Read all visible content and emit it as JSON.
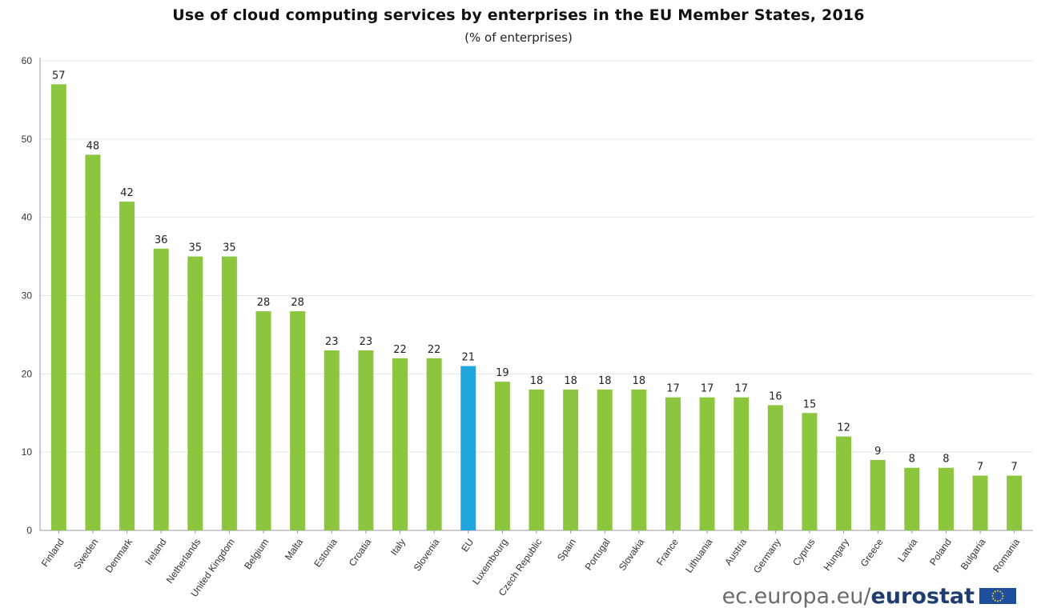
{
  "chart_data": {
    "type": "bar",
    "title": "Use of cloud computing services by enterprises in the EU Member States, 2016",
    "subtitle": "(% of enterprises)",
    "xlabel": "",
    "ylabel": "",
    "ylim": [
      0,
      60
    ],
    "yticks": [
      0,
      10,
      20,
      30,
      40,
      50,
      60
    ],
    "grid": "horizontal",
    "categories": [
      "Finland",
      "Sweden",
      "Denmark",
      "Ireland",
      "Netherlands",
      "United Kingdom",
      "Belgium",
      "Malta",
      "Estonia",
      "Croatia",
      "Italy",
      "Slovenia",
      "EU",
      "Luxembourg",
      "Czech Republic",
      "Spain",
      "Portugal",
      "Slovakia",
      "France",
      "Lithuania",
      "Austria",
      "Germany",
      "Cyprus",
      "Hungary",
      "Greece",
      "Latvia",
      "Poland",
      "Bulgaria",
      "Romania"
    ],
    "values": [
      57,
      48,
      42,
      36,
      35,
      35,
      28,
      28,
      23,
      23,
      22,
      22,
      21,
      19,
      18,
      18,
      18,
      18,
      17,
      17,
      17,
      16,
      15,
      12,
      9,
      8,
      8,
      7,
      7
    ],
    "highlight_category": "EU",
    "colors": {
      "bar": "#8cc63f",
      "highlight": "#1fa6df",
      "grid": "#e4e4e4",
      "axis": "#999999"
    }
  },
  "footer": {
    "site": "ec.europa.eu/",
    "brand": "eurostat"
  },
  "logo": {
    "icon": "eu-flag-icon",
    "colors": {
      "field": "#1f4f9c",
      "stars": "#ffd617"
    }
  }
}
